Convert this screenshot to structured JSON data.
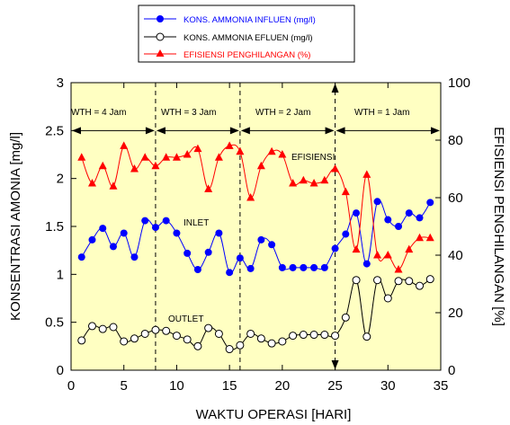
{
  "chart_data": {
    "type": "line",
    "xlabel": "WAKTU OPERASI [HARI]",
    "ylabel_left": "KONSENTRASI AMONIA [mg/l]",
    "ylabel_right": "EFISIENSI PENGHILANGAN [%]",
    "xlim": [
      0,
      35
    ],
    "ylim_left": [
      0,
      3
    ],
    "ylim_right": [
      0,
      100
    ],
    "x_ticks": [
      0,
      5,
      10,
      15,
      20,
      25,
      30,
      35
    ],
    "y_left_ticks": [
      0,
      0.5,
      1,
      1.5,
      2,
      2.5,
      3
    ],
    "y_right_ticks": [
      0,
      20,
      40,
      60,
      80,
      100
    ],
    "plot_background": "#ffffc2",
    "legend_position": "top",
    "series": [
      {
        "name": "KONS. AMMONIA INFLUEN (mg/l)",
        "axis": "left",
        "color": "#0000ff",
        "marker": "filled-circle",
        "x": [
          1,
          2,
          3,
          4,
          5,
          6,
          7,
          8,
          9,
          10,
          11,
          12,
          13,
          14,
          15,
          16,
          17,
          18,
          19,
          20,
          21,
          22,
          23,
          24,
          25,
          26,
          27,
          28,
          29,
          30,
          31,
          32,
          33,
          34
        ],
        "values": [
          1.18,
          1.36,
          1.48,
          1.29,
          1.43,
          1.18,
          1.56,
          1.49,
          1.56,
          1.43,
          1.22,
          1.05,
          1.23,
          1.43,
          1.02,
          1.17,
          1.06,
          1.36,
          1.31,
          1.07,
          1.07,
          1.07,
          1.07,
          1.07,
          1.27,
          1.42,
          1.64,
          1.11,
          1.76,
          1.57,
          1.5,
          1.64,
          1.59,
          1.75
        ]
      },
      {
        "name": "KONS. AMMONIA EFLUEN (mg/l)",
        "axis": "left",
        "color": "#000000",
        "marker": "open-circle",
        "x": [
          1,
          2,
          3,
          4,
          5,
          6,
          7,
          8,
          9,
          10,
          11,
          12,
          13,
          14,
          15,
          16,
          17,
          18,
          19,
          20,
          21,
          22,
          23,
          24,
          25,
          26,
          27,
          28,
          29,
          30,
          31,
          32,
          33,
          34
        ],
        "values": [
          0.31,
          0.46,
          0.43,
          0.45,
          0.3,
          0.33,
          0.38,
          0.42,
          0.41,
          0.36,
          0.32,
          0.25,
          0.44,
          0.38,
          0.22,
          0.26,
          0.38,
          0.33,
          0.28,
          0.3,
          0.36,
          0.37,
          0.37,
          0.37,
          0.36,
          0.55,
          0.94,
          0.35,
          0.94,
          0.75,
          0.93,
          0.93,
          0.88,
          0.95
        ]
      },
      {
        "name": "EFISIENSI PENGHILANGAN (%)",
        "axis": "right",
        "color": "#ff0000",
        "marker": "filled-triangle",
        "x": [
          1,
          2,
          3,
          4,
          5,
          6,
          7,
          8,
          9,
          10,
          11,
          12,
          13,
          14,
          15,
          16,
          17,
          18,
          19,
          20,
          21,
          22,
          23,
          24,
          25,
          26,
          27,
          28,
          29,
          30,
          31,
          32,
          33,
          34
        ],
        "values": [
          74,
          65,
          71,
          64,
          78,
          70,
          74,
          71,
          74,
          74,
          75,
          77,
          63,
          74,
          78,
          76,
          60,
          71,
          76,
          75,
          65,
          66,
          65,
          66,
          70,
          62,
          42,
          68,
          40,
          40,
          35,
          42,
          46,
          46
        ]
      }
    ],
    "annotations": {
      "phases": [
        "WTH = 4 Jam",
        "WTH = 3 Jam",
        "WTH = 2 Jam",
        "WTH = 1 Jam"
      ],
      "phase_boundaries": [
        8,
        16,
        25
      ],
      "labels": [
        "EFISIENSI",
        "INLET",
        "OUTLET"
      ]
    }
  }
}
